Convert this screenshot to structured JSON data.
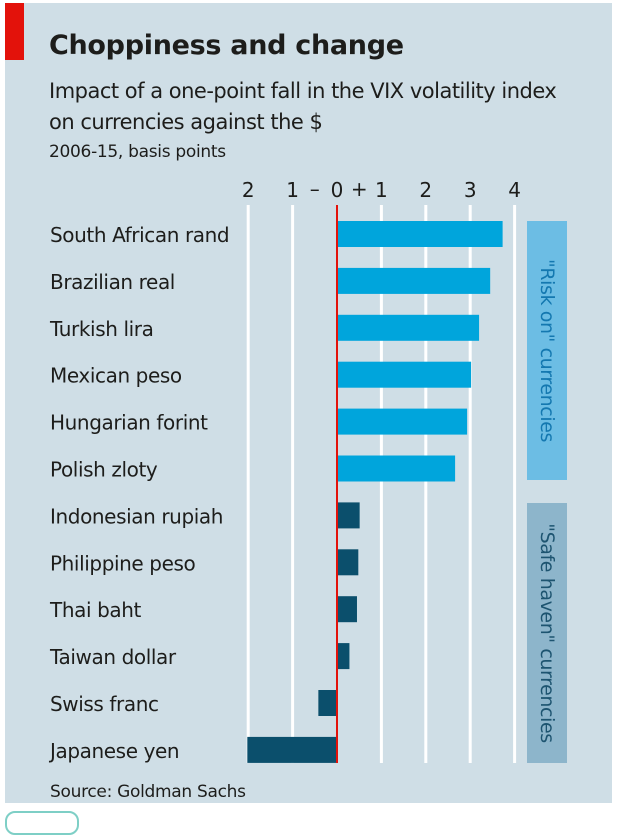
{
  "header": {
    "title": "Choppiness and change",
    "subtitle": "Impact of a one-point fall in the VIX volatility index on currencies against the $",
    "units": "2006-15, basis points"
  },
  "footer": {
    "source": "Source: Goldman Sachs"
  },
  "colors": {
    "background": "#cfdee6",
    "accent_red": "#e3120b",
    "risk_on_bar": "#00a5dc",
    "safe_haven_bar": "#0b4f6c",
    "zero_line": "#e3120b",
    "risk_on_panel": "#6cbde4",
    "risk_on_panel_text": "#1478b0",
    "safe_haven_panel": "#8db5cb",
    "safe_haven_panel_text": "#1d5470"
  },
  "chart_data": {
    "type": "bar",
    "orientation": "horizontal",
    "title": "Choppiness and change",
    "subtitle": "Impact of a one-point fall in the VIX volatility index on currencies against the $",
    "xlabel": "2006-15, basis points",
    "ylabel": "",
    "xlim": [
      -2,
      4
    ],
    "xticks": [
      -2,
      -1,
      0,
      1,
      2,
      3,
      4
    ],
    "xtick_labels": [
      "2",
      "1",
      "0",
      "1",
      "2",
      "3",
      "4"
    ],
    "sign_markers": {
      "negative": "–",
      "positive": "+"
    },
    "grid": true,
    "categories": [
      "South African rand",
      "Brazilian real",
      "Turkish lira",
      "Mexican peso",
      "Hungarian forint",
      "Polish zloty",
      "Indonesian rupiah",
      "Philippine peso",
      "Thai baht",
      "Taiwan dollar",
      "Swiss franc",
      "Japanese yen"
    ],
    "values": [
      3.73,
      3.45,
      3.2,
      3.02,
      2.93,
      2.66,
      0.51,
      0.48,
      0.45,
      0.28,
      -0.42,
      -2.02
    ],
    "groups": [
      {
        "name": "\"Risk on\" currencies",
        "from": 0,
        "to": 5,
        "color_key": "risk_on_bar"
      },
      {
        "name": "\"Safe haven\" currencies",
        "from": 6,
        "to": 11,
        "color_key": "safe_haven_bar"
      }
    ],
    "source": "Source: Goldman Sachs"
  }
}
